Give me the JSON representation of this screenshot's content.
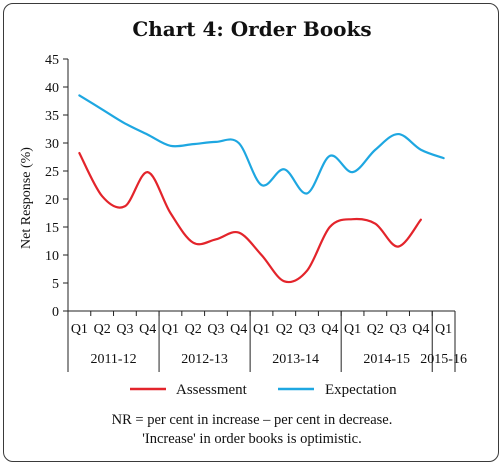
{
  "chart_data": {
    "type": "line",
    "title": "Chart 4: Order Books",
    "ylabel": "Net Response (%)",
    "xlabel": "",
    "ylim": [
      0,
      45
    ],
    "yticks": [
      0,
      5,
      10,
      15,
      20,
      25,
      30,
      35,
      40,
      45
    ],
    "categories": [
      "Q1",
      "Q2",
      "Q3",
      "Q4",
      "Q1",
      "Q2",
      "Q3",
      "Q4",
      "Q1",
      "Q2",
      "Q3",
      "Q4",
      "Q1",
      "Q2",
      "Q3",
      "Q4",
      "Q1"
    ],
    "year_groups": [
      {
        "label": "2011-12",
        "start": 0,
        "end": 3
      },
      {
        "label": "2012-13",
        "start": 4,
        "end": 7
      },
      {
        "label": "2013-14",
        "start": 8,
        "end": 11
      },
      {
        "label": "2014-15",
        "start": 12,
        "end": 15
      },
      {
        "label": "2015-16",
        "start": 16,
        "end": 16
      }
    ],
    "series": [
      {
        "name": "Assessment",
        "color": "#e3242b",
        "values": [
          28.2,
          20.5,
          18.7,
          24.8,
          17.5,
          12.2,
          12.8,
          14.0,
          10.0,
          5.3,
          7.2,
          15.0,
          16.4,
          15.6,
          11.5,
          16.3,
          null
        ]
      },
      {
        "name": "Expectation",
        "color": "#1ea7e1",
        "values": [
          38.5,
          36.0,
          33.5,
          31.5,
          29.5,
          29.8,
          30.2,
          30.0,
          22.5,
          25.3,
          21.0,
          27.7,
          24.8,
          28.8,
          31.6,
          28.8,
          27.3
        ]
      }
    ],
    "legend_position": "bottom",
    "grid": false
  },
  "notes": [
    "NR = per cent in increase – per cent in decrease.",
    "'Increase' in order books is optimistic."
  ]
}
